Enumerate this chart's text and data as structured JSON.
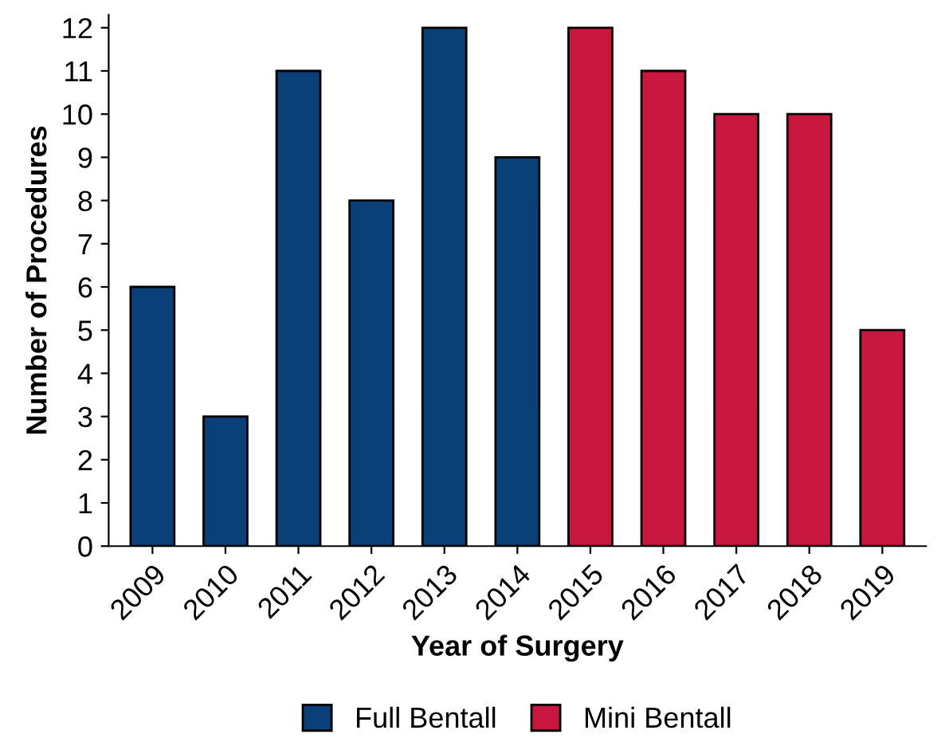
{
  "chart_data": {
    "type": "bar",
    "xlabel": "Year of Surgery",
    "ylabel": "Number of Procedures",
    "categories": [
      "2009",
      "2010",
      "2011",
      "2012",
      "2013",
      "2014",
      "2015",
      "2016",
      "2017",
      "2018",
      "2019"
    ],
    "series": [
      {
        "name": "Full Bentall",
        "color": "#0b3f78",
        "values": [
          6,
          3,
          11,
          8,
          12,
          9,
          null,
          null,
          null,
          null,
          null
        ]
      },
      {
        "name": "Mini Bentall",
        "color": "#c8163f",
        "values": [
          null,
          null,
          null,
          null,
          null,
          null,
          12,
          11,
          10,
          10,
          5
        ]
      }
    ],
    "ylim": [
      0,
      12.3
    ],
    "yticks": [
      0,
      1,
      2,
      3,
      4,
      5,
      6,
      7,
      8,
      9,
      10,
      11,
      12
    ],
    "grid": false,
    "legend": "bottom"
  }
}
